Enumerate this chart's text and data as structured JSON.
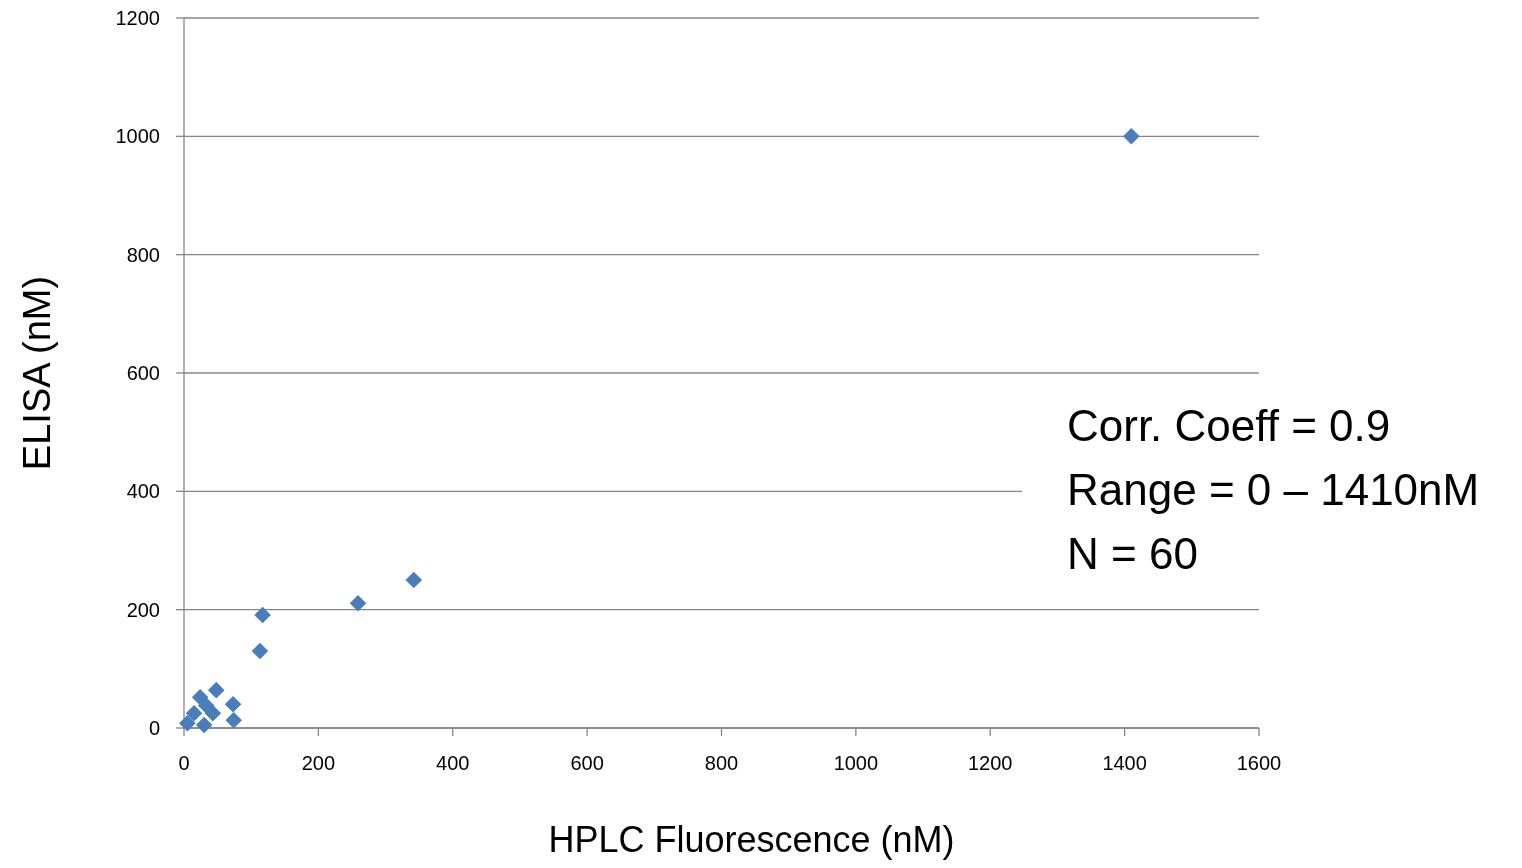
{
  "chart_data": {
    "type": "scatter",
    "xlabel": "HPLC Fluorescence (nM)",
    "ylabel": "ELISA (nM)",
    "xlim": [
      0,
      1600
    ],
    "xticks": [
      0,
      200,
      400,
      600,
      800,
      1000,
      1200,
      1400,
      1600
    ],
    "ylim": [
      0,
      1200
    ],
    "yticks": [
      0,
      200,
      400,
      600,
      800,
      1000,
      1200
    ],
    "grid": "y",
    "marker": "diamond",
    "annotations": [
      "Corr. Coeff = 0.9",
      "Range = 0 – 1410nM",
      "N = 60"
    ],
    "series": [
      {
        "color": "#4a7ebb",
        "x": [
          1410,
          342,
          259,
          117,
          113,
          73,
          74,
          48,
          24,
          43,
          33,
          30,
          15,
          5
        ],
        "values": [
          1000,
          250,
          211,
          191,
          130,
          40,
          13,
          64,
          52,
          25,
          38,
          5,
          25,
          8
        ]
      }
    ]
  }
}
